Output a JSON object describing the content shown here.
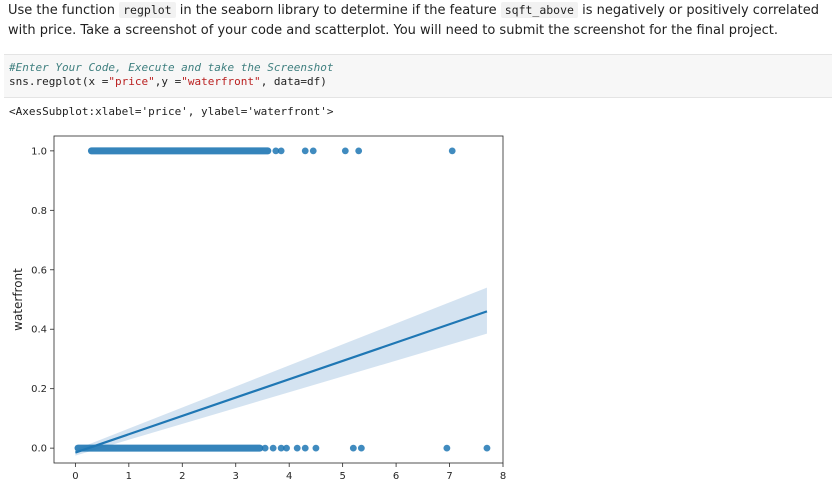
{
  "instructions": {
    "part1": "Use the function ",
    "code1": "regplot",
    "part2": " in the seaborn library to determine if the feature ",
    "code2": "sqft_above",
    "part3": " is negatively or positively correlated with price. Take a screenshot of your code and scatterplot. You will need to submit the screenshot for the final project."
  },
  "code_cell": {
    "comment": "#Enter Your Code, Execute and take the Screenshot",
    "code_prefix": "sns.regplot(x =",
    "str_x": "\"price\"",
    "code_mid": ",y =",
    "str_y": "\"waterfront\"",
    "code_suffix": ", data=df)"
  },
  "output_text": "<AxesSubplot:xlabel='price', ylabel='waterfront'>",
  "chart_data": {
    "type": "scatter",
    "title": "",
    "xlabel": "",
    "ylabel": "waterfront",
    "xlim": [
      -0.4,
      8.0
    ],
    "ylim": [
      -0.05,
      1.05
    ],
    "x_ticks": [
      0,
      1,
      2,
      3,
      4,
      5,
      6,
      7,
      8
    ],
    "y_ticks": [
      0.0,
      0.2,
      0.4,
      0.6,
      0.8,
      1.0
    ],
    "y_tick_labels": [
      "0.0",
      "0.2",
      "0.4",
      "0.6",
      "0.8",
      "1.0"
    ],
    "x_tick_labels": [
      "0",
      "1",
      "2",
      "3",
      "4",
      "5",
      "6",
      "7",
      "8"
    ],
    "point_color": "#1f77b4",
    "line_color": "#1f77b4",
    "band_color": "#c6d9ec",
    "series": [
      {
        "name": "",
        "dense_segments": [
          {
            "y": 0,
            "x_from": 0.05,
            "x_to": 3.45
          },
          {
            "y": 1,
            "x_from": 0.3,
            "x_to": 3.6
          }
        ],
        "points": [
          {
            "x": 3.55,
            "y": 0
          },
          {
            "x": 3.7,
            "y": 0
          },
          {
            "x": 3.85,
            "y": 0
          },
          {
            "x": 3.95,
            "y": 0
          },
          {
            "x": 4.15,
            "y": 0
          },
          {
            "x": 4.3,
            "y": 0
          },
          {
            "x": 4.5,
            "y": 0
          },
          {
            "x": 5.2,
            "y": 0
          },
          {
            "x": 5.35,
            "y": 0
          },
          {
            "x": 6.95,
            "y": 0
          },
          {
            "x": 7.7,
            "y": 0
          },
          {
            "x": 3.75,
            "y": 1
          },
          {
            "x": 3.85,
            "y": 1
          },
          {
            "x": 4.3,
            "y": 1
          },
          {
            "x": 4.45,
            "y": 1
          },
          {
            "x": 5.05,
            "y": 1
          },
          {
            "x": 5.3,
            "y": 1
          },
          {
            "x": 7.05,
            "y": 1
          }
        ]
      }
    ],
    "regression_line": [
      {
        "x": 0.0,
        "y": -0.015
      },
      {
        "x": 7.7,
        "y": 0.46
      }
    ],
    "confidence_band": {
      "upper": [
        {
          "x": 0.0,
          "y": -0.005
        },
        {
          "x": 7.7,
          "y": 0.54
        }
      ],
      "lower": [
        {
          "x": 0.0,
          "y": -0.025
        },
        {
          "x": 7.7,
          "y": 0.385
        }
      ]
    }
  }
}
